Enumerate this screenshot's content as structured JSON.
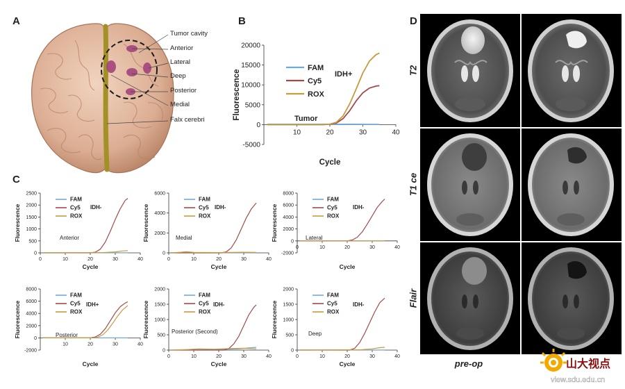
{
  "panels": {
    "a": "A",
    "b": "B",
    "c": "C",
    "d": "D"
  },
  "brain": {
    "labels": [
      "Tumor cavity",
      "Anterior",
      "Lateral",
      "Deep",
      "Posterior",
      "Medial",
      "Falx cerebri"
    ]
  },
  "chart_data": [
    {
      "id": "B",
      "type": "line",
      "title": "",
      "annotation": "IDH+",
      "region": "Tumor",
      "xlabel": "Cycle",
      "ylabel": "Fluorescence",
      "xlim": [
        0,
        40
      ],
      "ylim": [
        -5000,
        20000
      ],
      "xticks": [
        10,
        20,
        30,
        40
      ],
      "yticks": [
        -5000,
        0,
        5000,
        10000,
        15000,
        20000
      ],
      "legend": "top-left",
      "series": [
        {
          "name": "FAM",
          "color": "#6fa8dc",
          "x": [
            1,
            20,
            25,
            30,
            35
          ],
          "y": [
            80,
            90,
            80,
            70,
            60
          ]
        },
        {
          "name": "Cy5",
          "color": "#a14a4a",
          "x": [
            1,
            18,
            20,
            22,
            24,
            26,
            28,
            30,
            32,
            34,
            35
          ],
          "y": [
            0,
            0,
            80,
            400,
            1500,
            3500,
            6000,
            8000,
            9200,
            9700,
            9800
          ]
        },
        {
          "name": "ROX",
          "color": "#c79a3f",
          "x": [
            1,
            18,
            20,
            22,
            24,
            26,
            28,
            30,
            32,
            34,
            35
          ],
          "y": [
            0,
            0,
            100,
            600,
            2200,
            5200,
            9000,
            13000,
            16000,
            17600,
            18000
          ]
        }
      ]
    },
    {
      "id": "C1",
      "type": "line",
      "annotation": "IDH-",
      "region": "Anterior",
      "xlabel": "Cycle",
      "ylabel": "Fluorescence",
      "xlim": [
        0,
        40
      ],
      "ylim": [
        0,
        2500
      ],
      "xticks": [
        0,
        10,
        20,
        30,
        40
      ],
      "yticks": [
        0,
        500,
        1000,
        1500,
        2000,
        2500
      ],
      "legend": "top-left",
      "series": [
        {
          "name": "FAM",
          "color": "#6fa8dc",
          "x": [
            1,
            35
          ],
          "y": [
            5,
            5
          ]
        },
        {
          "name": "Cy5",
          "color": "#a14a4a",
          "x": [
            1,
            20,
            22,
            24,
            26,
            28,
            30,
            32,
            34,
            35
          ],
          "y": [
            0,
            0,
            30,
            150,
            450,
            900,
            1400,
            1850,
            2200,
            2280
          ]
        },
        {
          "name": "ROX",
          "color": "#c79a3f",
          "x": [
            1,
            25,
            30,
            33,
            35
          ],
          "y": [
            0,
            10,
            40,
            80,
            90
          ]
        }
      ]
    },
    {
      "id": "C2",
      "type": "line",
      "annotation": "IDH-",
      "region": "Medial",
      "xlabel": "Cycle",
      "ylabel": "Fluorescence",
      "xlim": [
        0,
        40
      ],
      "ylim": [
        0,
        6000
      ],
      "xticks": [
        0,
        10,
        20,
        30,
        40
      ],
      "yticks": [
        0,
        2000,
        4000,
        6000
      ],
      "legend": "top-left",
      "series": [
        {
          "name": "FAM",
          "color": "#6fa8dc",
          "x": [
            1,
            35
          ],
          "y": [
            20,
            20
          ]
        },
        {
          "name": "Cy5",
          "color": "#a14a4a",
          "x": [
            1,
            21,
            23,
            25,
            27,
            29,
            31,
            33,
            35
          ],
          "y": [
            0,
            0,
            100,
            500,
            1300,
            2400,
            3500,
            4400,
            5000
          ]
        },
        {
          "name": "ROX",
          "color": "#c79a3f",
          "x": [
            1,
            5,
            7,
            10,
            20,
            30,
            35
          ],
          "y": [
            0,
            60,
            120,
            40,
            30,
            60,
            40
          ]
        }
      ]
    },
    {
      "id": "C3",
      "type": "line",
      "annotation": "IDH-",
      "region": "Lateral",
      "xlabel": "Cycle",
      "ylabel": "Fluorescence",
      "xlim": [
        0,
        40
      ],
      "ylim": [
        -2000,
        8000
      ],
      "xticks": [
        0,
        10,
        20,
        30,
        40
      ],
      "yticks": [
        -2000,
        0,
        2000,
        4000,
        6000,
        8000
      ],
      "legend": "top-left",
      "series": [
        {
          "name": "FAM",
          "color": "#6fa8dc",
          "x": [
            1,
            35
          ],
          "y": [
            10,
            10
          ]
        },
        {
          "name": "Cy5",
          "color": "#a14a4a",
          "x": [
            1,
            20,
            22,
            24,
            26,
            28,
            30,
            32,
            34,
            35
          ],
          "y": [
            0,
            0,
            150,
            600,
            1500,
            2800,
            4200,
            5600,
            6600,
            7000
          ]
        },
        {
          "name": "ROX",
          "color": "#c79a3f",
          "x": [
            1,
            35
          ],
          "y": [
            0,
            0
          ]
        }
      ]
    },
    {
      "id": "C4",
      "type": "line",
      "annotation": "IDH+",
      "region": "Posterior",
      "xlabel": "Cycle",
      "ylabel": "Fluorescence",
      "xlim": [
        0,
        40
      ],
      "ylim": [
        -2000,
        8000
      ],
      "xticks": [
        10,
        20,
        30,
        40
      ],
      "yticks": [
        -2000,
        0,
        2000,
        4000,
        6000,
        8000
      ],
      "legend": "top-left",
      "series": [
        {
          "name": "FAM",
          "color": "#6fa8dc",
          "x": [
            1,
            35
          ],
          "y": [
            10,
            10
          ]
        },
        {
          "name": "Cy5",
          "color": "#a14a4a",
          "x": [
            1,
            20,
            22,
            24,
            26,
            28,
            30,
            32,
            34,
            35
          ],
          "y": [
            0,
            0,
            150,
            600,
            1500,
            2800,
            4100,
            5100,
            5700,
            5900
          ]
        },
        {
          "name": "ROX",
          "color": "#c79a3f",
          "x": [
            1,
            21,
            23,
            25,
            27,
            29,
            31,
            33,
            35
          ],
          "y": [
            0,
            0,
            120,
            500,
            1300,
            2400,
            3600,
            4600,
            5300
          ]
        }
      ]
    },
    {
      "id": "C5",
      "type": "line",
      "annotation": "IDH-",
      "region": "Posterior (Second)",
      "xlabel": "Cycle",
      "ylabel": "Fluorescence",
      "xlim": [
        0,
        40
      ],
      "ylim": [
        0,
        2000
      ],
      "xticks": [
        0,
        10,
        20,
        30,
        40
      ],
      "yticks": [
        0,
        500,
        1000,
        1500,
        2000
      ],
      "legend": "top-left",
      "series": [
        {
          "name": "FAM",
          "color": "#6fa8dc",
          "x": [
            1,
            10,
            20,
            28,
            32,
            35
          ],
          "y": [
            0,
            10,
            20,
            40,
            70,
            90
          ]
        },
        {
          "name": "Cy5",
          "color": "#a14a4a",
          "x": [
            1,
            22,
            24,
            26,
            28,
            30,
            32,
            34,
            35
          ],
          "y": [
            0,
            0,
            50,
            200,
            450,
            800,
            1150,
            1400,
            1480
          ]
        },
        {
          "name": "ROX",
          "color": "#c79a3f",
          "x": [
            1,
            8,
            12,
            18,
            24,
            30,
            35
          ],
          "y": [
            0,
            20,
            40,
            30,
            50,
            60,
            40
          ]
        }
      ]
    },
    {
      "id": "C6",
      "type": "line",
      "annotation": "IDH-",
      "region": "Deep",
      "xlabel": "Cycle",
      "ylabel": "Fluorescence",
      "xlim": [
        0,
        40
      ],
      "ylim": [
        0,
        2000
      ],
      "xticks": [
        0,
        10,
        20,
        30,
        40
      ],
      "yticks": [
        0,
        500,
        1000,
        1500,
        2000
      ],
      "legend": "top-left",
      "series": [
        {
          "name": "FAM",
          "color": "#6fa8dc",
          "x": [
            1,
            35
          ],
          "y": [
            5,
            5
          ]
        },
        {
          "name": "Cy5",
          "color": "#a14a4a",
          "x": [
            1,
            21,
            23,
            25,
            27,
            29,
            31,
            33,
            35
          ],
          "y": [
            0,
            0,
            60,
            250,
            550,
            900,
            1250,
            1550,
            1700
          ]
        },
        {
          "name": "ROX",
          "color": "#c79a3f",
          "x": [
            1,
            25,
            30,
            33,
            35
          ],
          "y": [
            0,
            10,
            40,
            80,
            90
          ]
        }
      ]
    }
  ],
  "mri": {
    "rows": [
      "T2",
      "T1 ce",
      "Flair"
    ],
    "footer": "pre-op"
  },
  "watermark": {
    "brand": "山大视点",
    "url": "view.sdu.edu.cn"
  },
  "colors": {
    "fam": "#6fa8dc",
    "cy5": "#a14a4a",
    "rox": "#c79a3f"
  }
}
